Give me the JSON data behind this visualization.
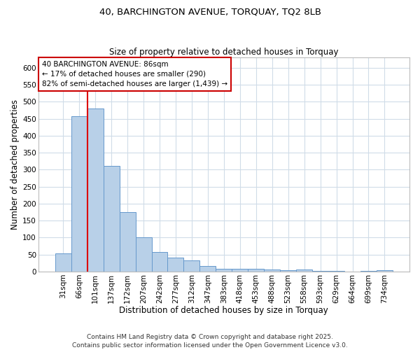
{
  "title1": "40, BARCHINGTON AVENUE, TORQUAY, TQ2 8LB",
  "title2": "Size of property relative to detached houses in Torquay",
  "xlabel": "Distribution of detached houses by size in Torquay",
  "ylabel": "Number of detached properties",
  "categories": [
    "31sqm",
    "66sqm",
    "101sqm",
    "137sqm",
    "172sqm",
    "207sqm",
    "242sqm",
    "277sqm",
    "312sqm",
    "347sqm",
    "383sqm",
    "418sqm",
    "453sqm",
    "488sqm",
    "523sqm",
    "558sqm",
    "593sqm",
    "629sqm",
    "664sqm",
    "699sqm",
    "734sqm"
  ],
  "values": [
    53,
    457,
    480,
    312,
    175,
    100,
    57,
    42,
    32,
    16,
    9,
    9,
    9,
    6,
    5,
    7,
    1,
    1,
    0,
    1,
    4
  ],
  "bar_color": "#b8d0e8",
  "bar_edge_color": "#6699cc",
  "vline_color": "#dd0000",
  "annotation_text": "40 BARCHINGTON AVENUE: 86sqm\n← 17% of detached houses are smaller (290)\n82% of semi-detached houses are larger (1,439) →",
  "annotation_box_color": "#ffffff",
  "annotation_box_edge": "#cc0000",
  "ylim": [
    0,
    630
  ],
  "yticks": [
    0,
    50,
    100,
    150,
    200,
    250,
    300,
    350,
    400,
    450,
    500,
    550,
    600
  ],
  "footer": "Contains HM Land Registry data © Crown copyright and database right 2025.\nContains public sector information licensed under the Open Government Licence v3.0.",
  "bg_color": "#ffffff",
  "plot_bg_color": "#ffffff",
  "grid_color": "#d0dce8"
}
